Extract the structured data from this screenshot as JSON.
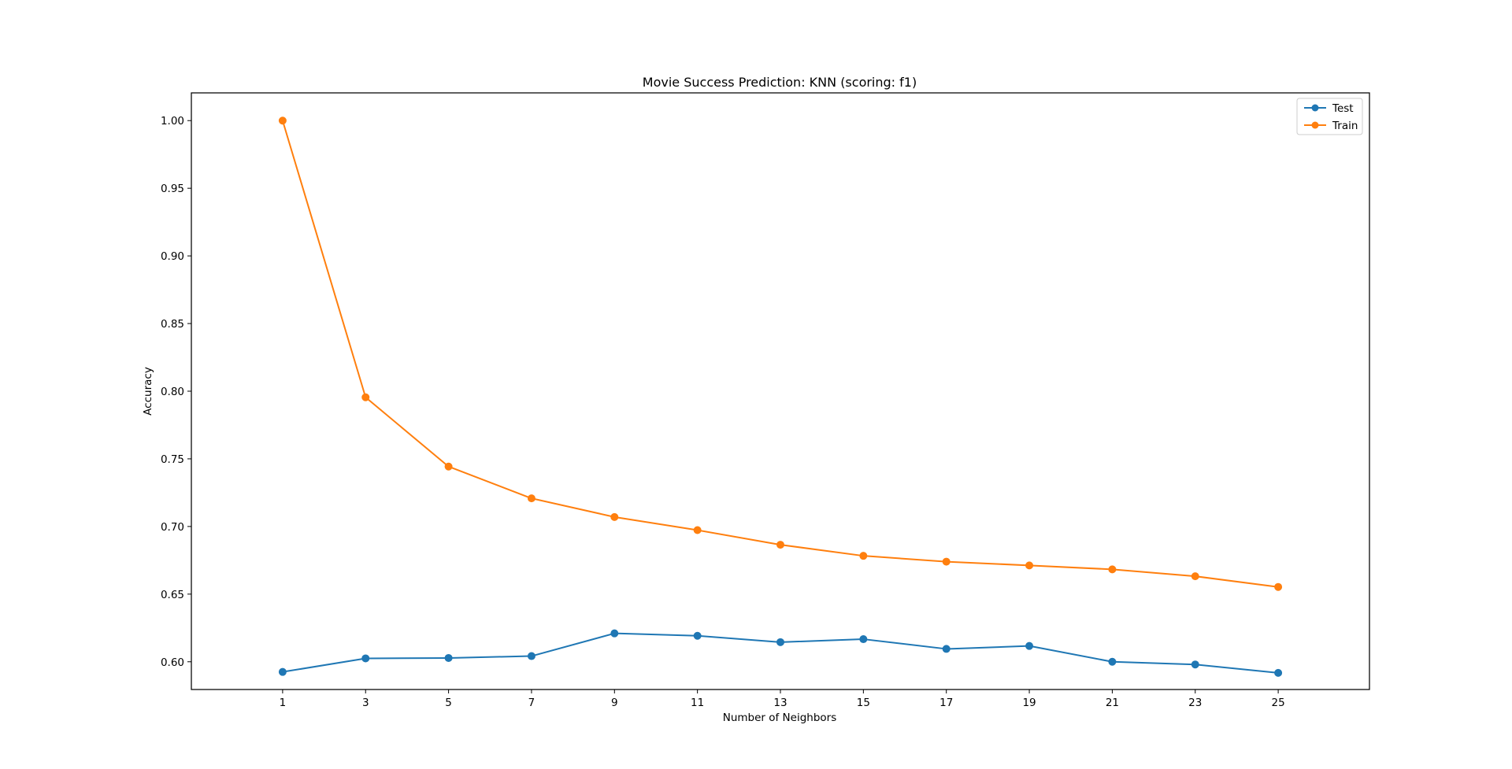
{
  "chart_data": {
    "type": "line",
    "title": "Movie Success Prediction: KNN (scoring: f1)",
    "xlabel": "Number of Neighbors",
    "ylabel": "Accuracy",
    "x": [
      1,
      3,
      5,
      7,
      9,
      11,
      13,
      15,
      17,
      19,
      21,
      23,
      25
    ],
    "xticks": [
      1,
      3,
      5,
      7,
      9,
      11,
      13,
      15,
      17,
      19,
      21,
      23,
      25
    ],
    "yticks": [
      0.6,
      0.65,
      0.7,
      0.75,
      0.8,
      0.85,
      0.9,
      0.95,
      1.0
    ],
    "xlim": [
      -1.2,
      27.2
    ],
    "ylim": [
      0.5795,
      1.0205
    ],
    "grid": false,
    "legend_position": "top-right",
    "series": [
      {
        "name": "Test",
        "color": "#1f77b4",
        "values": [
          0.5925,
          0.6025,
          0.6028,
          0.6042,
          0.621,
          0.6192,
          0.6145,
          0.6167,
          0.6095,
          0.6117,
          0.6,
          0.598,
          0.5918
        ]
      },
      {
        "name": "Train",
        "color": "#ff7f0e",
        "values": [
          1.0,
          0.7955,
          0.7443,
          0.7208,
          0.707,
          0.6973,
          0.6865,
          0.6783,
          0.674,
          0.6712,
          0.6683,
          0.6632,
          0.6553
        ]
      }
    ]
  }
}
